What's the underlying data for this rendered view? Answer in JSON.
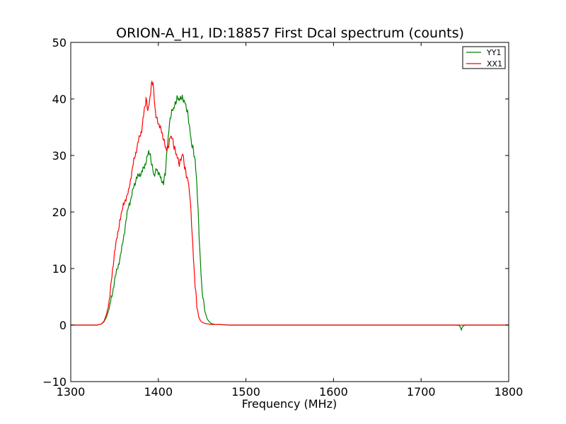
{
  "chart_data": {
    "type": "line",
    "title": "ORION-A_H1, ID:18857 First Dcal spectrum (counts)",
    "xlabel": "Frequency (MHz)",
    "ylabel": "",
    "xlim": [
      1300,
      1800
    ],
    "ylim": [
      -10,
      50
    ],
    "xticks": [
      1300,
      1400,
      1500,
      1600,
      1700,
      1800
    ],
    "yticks": [
      -10,
      0,
      10,
      20,
      30,
      40,
      50
    ],
    "xtick_labels": [
      "1300",
      "1400",
      "1500",
      "1600",
      "1700",
      "1800"
    ],
    "ytick_labels": [
      "−10",
      "0",
      "10",
      "20",
      "30",
      "40",
      "50"
    ],
    "grid": false,
    "legend_position": "top-right",
    "series": [
      {
        "name": "YY1",
        "color": "#008000",
        "x": [
          1300,
          1330,
          1335,
          1338,
          1341,
          1344,
          1347,
          1350,
          1353,
          1356,
          1360,
          1363,
          1366,
          1369,
          1372,
          1375,
          1378,
          1381,
          1384,
          1387,
          1389,
          1391,
          1393,
          1395,
          1398,
          1400,
          1403,
          1406,
          1408,
          1410,
          1412,
          1414,
          1416,
          1418,
          1420,
          1422,
          1424,
          1426,
          1428,
          1430,
          1432,
          1434,
          1436,
          1438,
          1440,
          1442,
          1444,
          1446,
          1448,
          1450,
          1453,
          1456,
          1460,
          1465,
          1470,
          1480,
          1500,
          1600,
          1740,
          1744,
          1745,
          1746,
          1747,
          1750,
          1800
        ],
        "y": [
          0,
          0,
          0.2,
          0.6,
          1.5,
          3.0,
          5.2,
          7.8,
          10.0,
          11.5,
          15.0,
          18.5,
          21.0,
          22.5,
          24.5,
          26.0,
          26.5,
          27.0,
          28.0,
          29.5,
          30.8,
          29.8,
          28.0,
          26.5,
          27.5,
          27.0,
          25.8,
          25.2,
          27.0,
          31.0,
          34.5,
          37.0,
          38.0,
          38.5,
          39.5,
          40.3,
          39.8,
          40.3,
          40.0,
          39.5,
          38.5,
          37.0,
          34.5,
          32.0,
          31.0,
          29.0,
          25.0,
          18.0,
          11.0,
          6.0,
          2.5,
          1.0,
          0.3,
          0.1,
          0.1,
          0,
          0,
          0,
          0,
          -0.1,
          -0.5,
          -0.9,
          -0.3,
          0,
          0
        ]
      },
      {
        "name": "XX1",
        "color": "#ff0000",
        "x": [
          1300,
          1330,
          1335,
          1338,
          1341,
          1344,
          1347,
          1350,
          1353,
          1356,
          1360,
          1363,
          1366,
          1369,
          1372,
          1375,
          1378,
          1381,
          1384,
          1386,
          1388,
          1390,
          1392,
          1394,
          1396,
          1398,
          1400,
          1403,
          1406,
          1408,
          1410,
          1412,
          1414,
          1416,
          1418,
          1420,
          1422,
          1424,
          1426,
          1428,
          1430,
          1432,
          1434,
          1436,
          1438,
          1440,
          1442,
          1444,
          1446,
          1448,
          1450,
          1453,
          1456,
          1460,
          1465,
          1470,
          1480,
          1500,
          1600,
          1800
        ],
        "y": [
          0,
          0,
          0.2,
          0.7,
          2.0,
          4.5,
          8.5,
          13.0,
          15.5,
          18.5,
          21.0,
          22.5,
          23.5,
          26.5,
          29.0,
          31.0,
          33.0,
          34.5,
          38.0,
          40.0,
          38.0,
          39.5,
          42.5,
          43.0,
          38.5,
          36.5,
          35.8,
          34.5,
          33.0,
          31.5,
          31.0,
          32.0,
          33.5,
          33.0,
          31.5,
          30.5,
          29.5,
          28.5,
          29.5,
          30.3,
          28.0,
          26.5,
          25.5,
          23.0,
          18.0,
          12.0,
          7.0,
          3.5,
          1.5,
          0.8,
          0.5,
          0.3,
          0.2,
          0.1,
          0.1,
          0.1,
          0,
          0,
          0,
          0
        ]
      }
    ]
  }
}
